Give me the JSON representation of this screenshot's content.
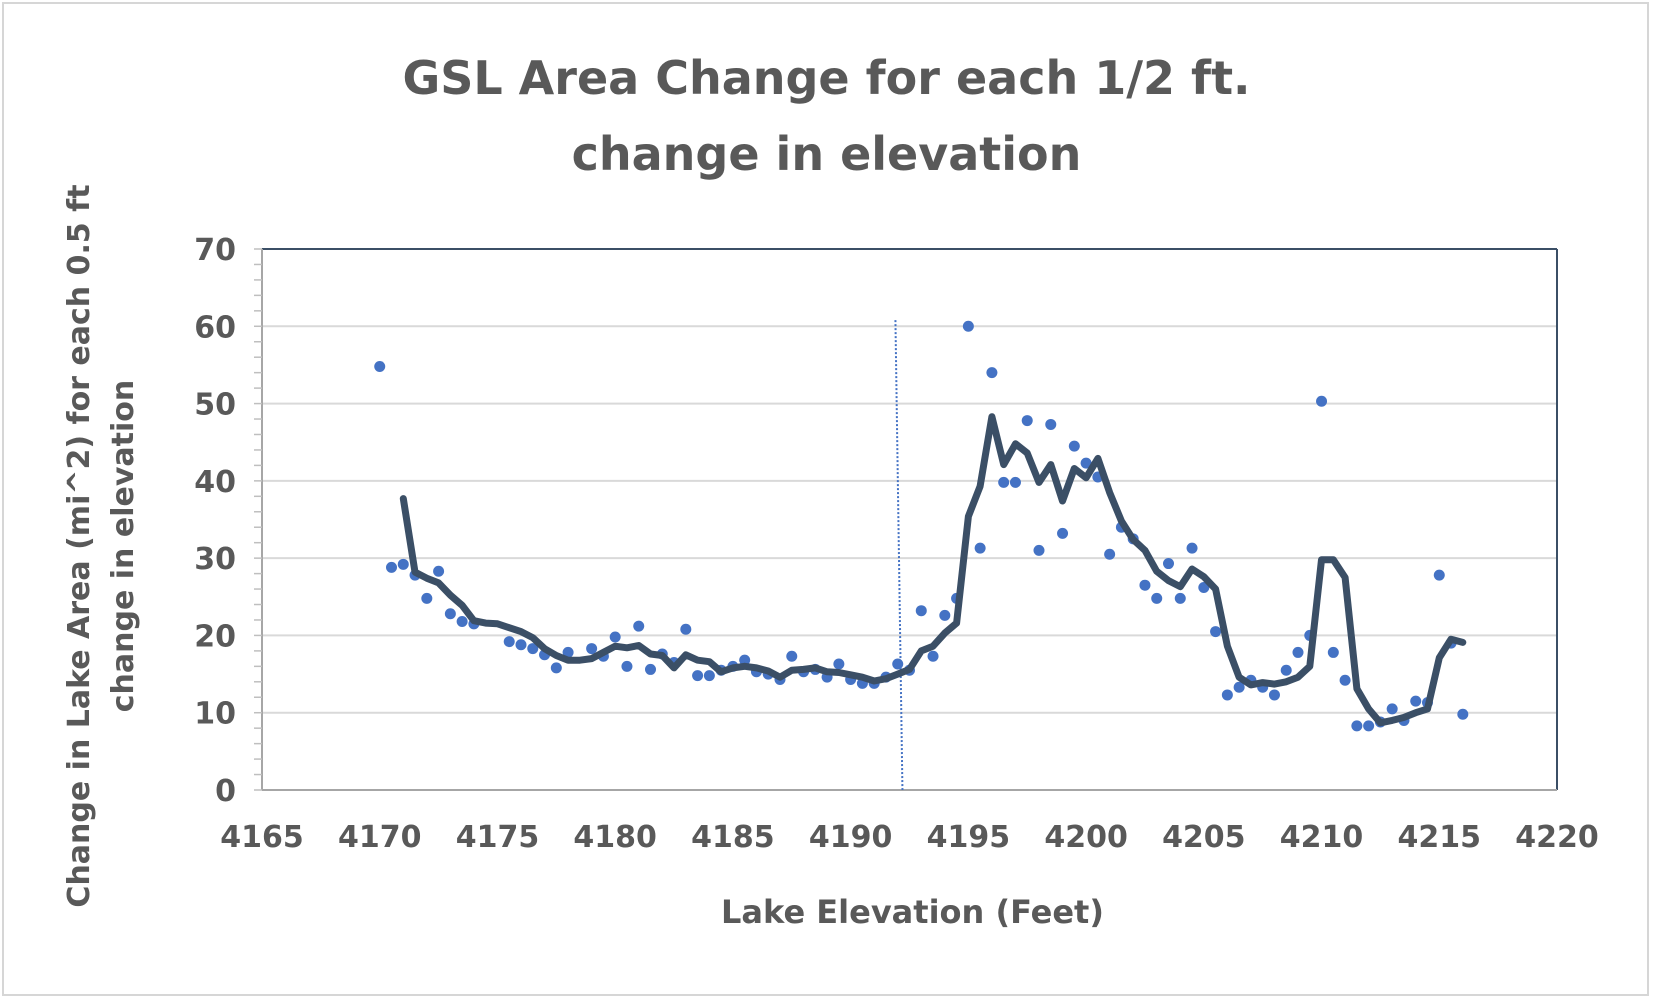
{
  "chart_data": {
    "type": "scatter",
    "title_lines": [
      "GSL Area Change for each 1/2 ft.",
      "change in elevation"
    ],
    "xlabel": "Lake Elevation (Feet)",
    "ylabel": "Change in Lake Area (mi^2) for each 0.5 ft change in elevation",
    "xlim": [
      4165,
      4220
    ],
    "ylim": [
      0,
      70
    ],
    "x_ticks": [
      4165,
      4170,
      4175,
      4180,
      4185,
      4190,
      4195,
      4200,
      4205,
      4210,
      4215,
      4220
    ],
    "y_ticks": [
      0,
      10,
      20,
      30,
      40,
      50,
      60,
      70
    ],
    "grid": "horizontal",
    "reference_line_x": 4192.2,
    "colors": {
      "points": "#4472c4",
      "trend": "#3b4f66",
      "reference_line": "#4472c4",
      "grid": "#d9d9d9",
      "axis": "#3b4f66"
    },
    "series": [
      {
        "type": "scatter",
        "points": [
          [
            4170,
            54.8
          ],
          [
            4170.5,
            28.8
          ],
          [
            4171,
            29.2
          ],
          [
            4171.5,
            27.8
          ],
          [
            4172,
            24.8
          ],
          [
            4172.5,
            28.3
          ],
          [
            4173,
            22.8
          ],
          [
            4173.5,
            21.8
          ],
          [
            4174,
            21.5
          ],
          [
            4175.5,
            19.2
          ],
          [
            4176,
            18.8
          ],
          [
            4176.5,
            18.3
          ],
          [
            4177,
            17.5
          ],
          [
            4177.5,
            15.8
          ],
          [
            4178,
            17.8
          ],
          [
            4179,
            18.3
          ],
          [
            4179.5,
            17.3
          ],
          [
            4180,
            19.8
          ],
          [
            4180.5,
            16.0
          ],
          [
            4181,
            21.2
          ],
          [
            4181.5,
            15.6
          ],
          [
            4182,
            17.6
          ],
          [
            4182.5,
            16.5
          ],
          [
            4183,
            20.8
          ],
          [
            4183.5,
            14.8
          ],
          [
            4184,
            14.8
          ],
          [
            4184.5,
            15.5
          ],
          [
            4185,
            16.0
          ],
          [
            4185.5,
            16.8
          ],
          [
            4186,
            15.3
          ],
          [
            4186.5,
            15.0
          ],
          [
            4187,
            14.3
          ],
          [
            4187.5,
            17.3
          ],
          [
            4188,
            15.3
          ],
          [
            4188.5,
            15.6
          ],
          [
            4189,
            14.6
          ],
          [
            4189.5,
            16.3
          ],
          [
            4190,
            14.3
          ],
          [
            4190.5,
            13.8
          ],
          [
            4191,
            13.8
          ],
          [
            4191.5,
            14.6
          ],
          [
            4192,
            16.3
          ],
          [
            4192.5,
            15.5
          ],
          [
            4193,
            23.2
          ],
          [
            4193.5,
            17.3
          ],
          [
            4194,
            22.6
          ],
          [
            4194.5,
            24.8
          ],
          [
            4195,
            60.0
          ],
          [
            4195.5,
            31.3
          ],
          [
            4196,
            54.0
          ],
          [
            4196.5,
            39.8
          ],
          [
            4197,
            39.8
          ],
          [
            4197.5,
            47.8
          ],
          [
            4198,
            31.0
          ],
          [
            4198.5,
            47.3
          ],
          [
            4199,
            33.2
          ],
          [
            4199.5,
            44.5
          ],
          [
            4200,
            42.3
          ],
          [
            4200.5,
            40.5
          ],
          [
            4201,
            30.5
          ],
          [
            4201.5,
            34.0
          ],
          [
            4202,
            32.5
          ],
          [
            4202.5,
            26.5
          ],
          [
            4203,
            24.8
          ],
          [
            4203.5,
            29.3
          ],
          [
            4204,
            24.8
          ],
          [
            4204.5,
            31.3
          ],
          [
            4205,
            26.2
          ],
          [
            4205.5,
            20.5
          ],
          [
            4206,
            12.3
          ],
          [
            4206.5,
            13.3
          ],
          [
            4207,
            14.2
          ],
          [
            4207.5,
            13.3
          ],
          [
            4208,
            12.3
          ],
          [
            4208.5,
            15.5
          ],
          [
            4209,
            17.8
          ],
          [
            4209.5,
            20.0
          ],
          [
            4210,
            50.3
          ],
          [
            4210.5,
            17.8
          ],
          [
            4211,
            14.2
          ],
          [
            4211.5,
            8.3
          ],
          [
            4212,
            8.3
          ],
          [
            4212.5,
            8.8
          ],
          [
            4213,
            10.5
          ],
          [
            4213.5,
            9.0
          ],
          [
            4214,
            11.5
          ],
          [
            4214.5,
            11.3
          ],
          [
            4215,
            27.8
          ],
          [
            4215.5,
            19.0
          ],
          [
            4216,
            9.8
          ]
        ]
      },
      {
        "type": "line",
        "points": [
          [
            4171,
            37.7
          ],
          [
            4171.5,
            28.2
          ],
          [
            4172,
            27.4
          ],
          [
            4172.5,
            26.8
          ],
          [
            4173,
            25.2
          ],
          [
            4173.5,
            23.9
          ],
          [
            4174,
            21.9
          ],
          [
            4174.5,
            21.6
          ],
          [
            4175,
            21.5
          ],
          [
            4175.5,
            21.0
          ],
          [
            4176,
            20.5
          ],
          [
            4176.5,
            19.7
          ],
          [
            4177,
            18.3
          ],
          [
            4177.5,
            17.4
          ],
          [
            4178,
            16.8
          ],
          [
            4178.5,
            16.8
          ],
          [
            4179,
            17.0
          ],
          [
            4179.5,
            17.8
          ],
          [
            4180,
            18.6
          ],
          [
            4180.5,
            18.4
          ],
          [
            4181,
            18.7
          ],
          [
            4181.5,
            17.6
          ],
          [
            4182,
            17.4
          ],
          [
            4182.5,
            15.8
          ],
          [
            4183,
            17.5
          ],
          [
            4183.5,
            16.8
          ],
          [
            4184,
            16.6
          ],
          [
            4184.5,
            15.3
          ],
          [
            4185,
            15.8
          ],
          [
            4185.5,
            16.0
          ],
          [
            4186,
            15.8
          ],
          [
            4186.5,
            15.4
          ],
          [
            4187,
            14.6
          ],
          [
            4187.5,
            15.5
          ],
          [
            4188,
            15.6
          ],
          [
            4188.5,
            15.8
          ],
          [
            4189,
            15.3
          ],
          [
            4189.5,
            15.2
          ],
          [
            4190,
            14.9
          ],
          [
            4190.5,
            14.6
          ],
          [
            4191,
            14.1
          ],
          [
            4191.5,
            14.4
          ],
          [
            4192,
            15.0
          ],
          [
            4192.5,
            15.6
          ],
          [
            4193,
            18.0
          ],
          [
            4193.5,
            18.6
          ],
          [
            4194,
            20.3
          ],
          [
            4194.5,
            21.6
          ],
          [
            4195,
            35.4
          ],
          [
            4195.5,
            39.3
          ],
          [
            4196,
            48.3
          ],
          [
            4196.5,
            42.1
          ],
          [
            4197,
            44.8
          ],
          [
            4197.5,
            43.6
          ],
          [
            4198,
            39.8
          ],
          [
            4198.5,
            42.1
          ],
          [
            4199,
            37.4
          ],
          [
            4199.5,
            41.6
          ],
          [
            4200,
            40.4
          ],
          [
            4200.5,
            42.9
          ],
          [
            4201,
            38.5
          ],
          [
            4201.5,
            34.8
          ],
          [
            4202,
            32.4
          ],
          [
            4202.5,
            31.0
          ],
          [
            4203,
            28.3
          ],
          [
            4203.5,
            27.1
          ],
          [
            4204,
            26.3
          ],
          [
            4204.5,
            28.6
          ],
          [
            4205,
            27.6
          ],
          [
            4205.5,
            26.0
          ],
          [
            4206,
            18.6
          ],
          [
            4206.5,
            14.6
          ],
          [
            4207,
            13.6
          ],
          [
            4207.5,
            13.9
          ],
          [
            4208,
            13.7
          ],
          [
            4208.5,
            14.0
          ],
          [
            4209,
            14.6
          ],
          [
            4209.5,
            16.0
          ],
          [
            4210,
            29.8
          ],
          [
            4210.5,
            29.8
          ],
          [
            4211,
            27.5
          ],
          [
            4211.5,
            13.1
          ],
          [
            4212,
            10.5
          ],
          [
            4212.5,
            8.7
          ],
          [
            4213,
            9.0
          ],
          [
            4213.5,
            9.4
          ],
          [
            4214,
            10.0
          ],
          [
            4214.5,
            10.5
          ],
          [
            4215,
            17.1
          ],
          [
            4215.5,
            19.5
          ],
          [
            4216,
            19.1
          ]
        ]
      }
    ]
  }
}
